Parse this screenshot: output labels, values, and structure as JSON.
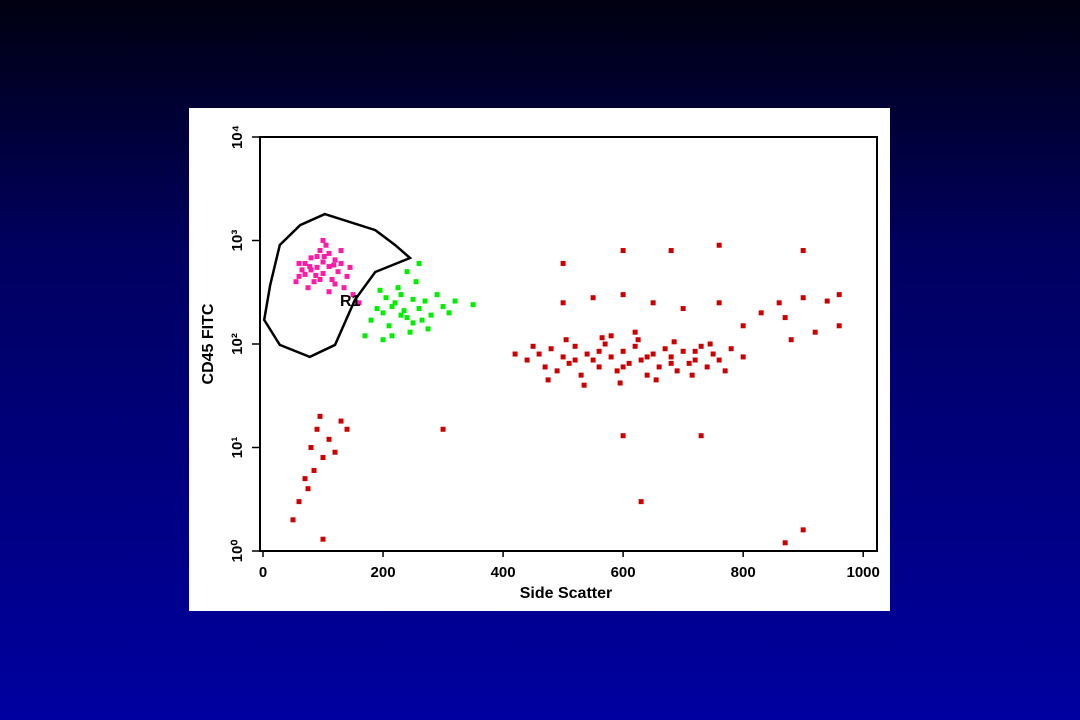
{
  "chart_data": {
    "type": "scatter",
    "x_label": "Side Scatter",
    "y_label": "CD45 FITC",
    "xlim": [
      -5,
      1023
    ],
    "ylim": [
      1,
      10000
    ],
    "yscale": "log",
    "xticks": [
      0,
      200,
      400,
      600,
      800,
      1000
    ],
    "yticks": [
      {
        "value": 1,
        "label": "10⁰"
      },
      {
        "value": 10,
        "label": "10¹"
      },
      {
        "value": 100,
        "label": "10²"
      },
      {
        "value": 1000,
        "label": "10³"
      },
      {
        "value": 10000,
        "label": "10⁴"
      }
    ],
    "series": [
      {
        "color": "#ff1aa8",
        "x": [
          60,
          70,
          80,
          90,
          100,
          110,
          120,
          85,
          95,
          105,
          75,
          115,
          125,
          130,
          65,
          55,
          140,
          90,
          100,
          110,
          80,
          120,
          135,
          150,
          145,
          70,
          100,
          95,
          60,
          130,
          160,
          110,
          88,
          118,
          102,
          78
        ],
        "y": [
          450,
          600,
          520,
          700,
          480,
          560,
          650,
          400,
          800,
          900,
          350,
          420,
          500,
          600,
          520,
          400,
          450,
          550,
          620,
          750,
          680,
          380,
          350,
          300,
          550,
          470,
          1000,
          420,
          600,
          800,
          250,
          320,
          460,
          580,
          700,
          560
        ]
      },
      {
        "color": "#00ee00",
        "x": [
          200,
          220,
          240,
          260,
          210,
          230,
          250,
          270,
          190,
          215,
          235,
          280,
          300,
          180,
          225,
          255,
          245,
          205,
          265,
          290,
          320,
          350,
          170,
          240,
          260,
          200,
          230,
          275,
          215,
          310,
          195,
          250
        ],
        "y": [
          200,
          250,
          180,
          220,
          150,
          300,
          160,
          260,
          220,
          120,
          210,
          190,
          230,
          170,
          350,
          400,
          130,
          280,
          170,
          300,
          260,
          240,
          120,
          500,
          600,
          110,
          190,
          140,
          230,
          200,
          330,
          270
        ]
      },
      {
        "color": "#cc0000",
        "x": [
          440,
          460,
          470,
          480,
          490,
          500,
          510,
          520,
          530,
          540,
          550,
          560,
          570,
          580,
          590,
          600,
          610,
          620,
          630,
          640,
          650,
          660,
          670,
          680,
          690,
          700,
          710,
          720,
          730,
          740,
          750,
          760,
          780,
          800,
          450,
          475,
          505,
          535,
          565,
          595,
          625,
          655,
          685,
          715,
          745,
          770,
          520,
          560,
          600,
          640,
          680,
          720,
          580,
          620,
          420,
          800,
          830,
          860,
          900,
          940,
          960,
          870,
          760,
          700,
          650,
          600,
          550,
          500,
          880,
          920,
          960,
          600,
          680,
          760,
          900,
          500,
          80,
          90,
          100,
          70,
          110,
          60,
          130,
          85,
          95,
          50,
          120,
          75,
          140,
          300,
          600,
          730,
          630,
          870,
          900,
          100
        ],
        "y": [
          70,
          80,
          60,
          90,
          55,
          75,
          65,
          95,
          50,
          80,
          70,
          60,
          100,
          75,
          55,
          85,
          65,
          95,
          70,
          50,
          80,
          60,
          90,
          75,
          55,
          85,
          65,
          70,
          95,
          60,
          80,
          70,
          90,
          75,
          95,
          45,
          110,
          40,
          115,
          42,
          110,
          45,
          105,
          50,
          100,
          55,
          70,
          85,
          60,
          75,
          65,
          85,
          120,
          130,
          80,
          150,
          200,
          250,
          280,
          260,
          300,
          180,
          250,
          220,
          250,
          300,
          280,
          250,
          110,
          130,
          150,
          800,
          800,
          900,
          800,
          600,
          10,
          15,
          8,
          5,
          12,
          3,
          18,
          6,
          20,
          2,
          9,
          4,
          15,
          15,
          13,
          13,
          3,
          1.2,
          1.6,
          1.3
        ]
      }
    ],
    "gate": {
      "label": "R1",
      "x": [
        2,
        12,
        28,
        62,
        103,
        187,
        220,
        245,
        187,
        153,
        120,
        78,
        28
      ],
      "y": [
        171,
        372,
        905,
        1410,
        1800,
        1260,
        905,
        677,
        496,
        266,
        98,
        75,
        98
      ]
    }
  }
}
